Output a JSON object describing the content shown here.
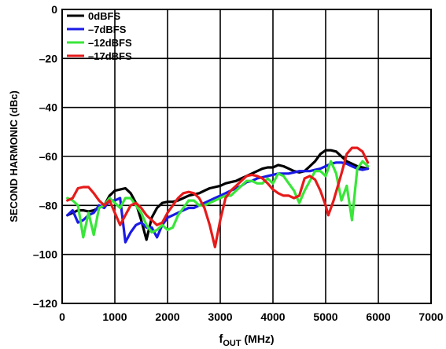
{
  "chart_data": {
    "type": "line",
    "xlabel_main": "f",
    "xlabel_sub": "OUT",
    "xlabel_unit": " (MHz)",
    "ylabel": "SECOND HARMONIC (dBc)",
    "xlim": [
      0,
      7000
    ],
    "ylim": [
      -120,
      0
    ],
    "xticks": [
      0,
      1000,
      2000,
      3000,
      4000,
      5000,
      6000,
      7000
    ],
    "yticks": [
      0,
      -20,
      -40,
      -60,
      -80,
      -100,
      -120
    ],
    "xtick_labels": [
      "0",
      "1000",
      "2000",
      "3000",
      "4000",
      "5000",
      "6000",
      "7000"
    ],
    "ytick_labels": [
      "0",
      "–20",
      "–40",
      "–60",
      "–80",
      "–100",
      "–120"
    ],
    "grid": true,
    "legend_position": "top-left",
    "series": [
      {
        "name": "0dBFS",
        "color": "#000000",
        "points": [
          [
            100,
            -84
          ],
          [
            200,
            -83
          ],
          [
            300,
            -82
          ],
          [
            400,
            -82
          ],
          [
            500,
            -82.5
          ],
          [
            600,
            -82
          ],
          [
            700,
            -81
          ],
          [
            800,
            -80
          ],
          [
            900,
            -76
          ],
          [
            1000,
            -74
          ],
          [
            1100,
            -73.5
          ],
          [
            1200,
            -73
          ],
          [
            1300,
            -75
          ],
          [
            1400,
            -79
          ],
          [
            1500,
            -86
          ],
          [
            1600,
            -94
          ],
          [
            1700,
            -85
          ],
          [
            1800,
            -81
          ],
          [
            1900,
            -79
          ],
          [
            2000,
            -78.5
          ],
          [
            2100,
            -78.5
          ],
          [
            2200,
            -78
          ],
          [
            2300,
            -77
          ],
          [
            2400,
            -76
          ],
          [
            2500,
            -75.5
          ],
          [
            2600,
            -75
          ],
          [
            2700,
            -74
          ],
          [
            2800,
            -73
          ],
          [
            2900,
            -72.5
          ],
          [
            3000,
            -72
          ],
          [
            3100,
            -71
          ],
          [
            3200,
            -70.5
          ],
          [
            3300,
            -70
          ],
          [
            3400,
            -69
          ],
          [
            3500,
            -68
          ],
          [
            3600,
            -67
          ],
          [
            3700,
            -66
          ],
          [
            3800,
            -65
          ],
          [
            3900,
            -64.5
          ],
          [
            4000,
            -64.5
          ],
          [
            4100,
            -63.5
          ],
          [
            4200,
            -64
          ],
          [
            4300,
            -65
          ],
          [
            4400,
            -66
          ],
          [
            4500,
            -66.5
          ],
          [
            4600,
            -66
          ],
          [
            4700,
            -64
          ],
          [
            4800,
            -62
          ],
          [
            4900,
            -59
          ],
          [
            5000,
            -57.5
          ],
          [
            5100,
            -57.5
          ],
          [
            5200,
            -58
          ],
          [
            5300,
            -60
          ],
          [
            5400,
            -62
          ],
          [
            5500,
            -63
          ],
          [
            5600,
            -64
          ],
          [
            5700,
            -64.5
          ],
          [
            5800,
            -65
          ]
        ]
      },
      {
        "name": "–7dBFS",
        "color": "#1a1ae6",
        "points": [
          [
            100,
            -84
          ],
          [
            200,
            -82
          ],
          [
            300,
            -87
          ],
          [
            400,
            -86
          ],
          [
            500,
            -84
          ],
          [
            600,
            -83
          ],
          [
            700,
            -80
          ],
          [
            800,
            -81
          ],
          [
            900,
            -78
          ],
          [
            1000,
            -78
          ],
          [
            1100,
            -77
          ],
          [
            1200,
            -95
          ],
          [
            1300,
            -91
          ],
          [
            1400,
            -88
          ],
          [
            1500,
            -87
          ],
          [
            1600,
            -89
          ],
          [
            1700,
            -89
          ],
          [
            1800,
            -93
          ],
          [
            1900,
            -88
          ],
          [
            2000,
            -85
          ],
          [
            2100,
            -84
          ],
          [
            2200,
            -83
          ],
          [
            2300,
            -82
          ],
          [
            2400,
            -81
          ],
          [
            2500,
            -81
          ],
          [
            2600,
            -80
          ],
          [
            2700,
            -79
          ],
          [
            2800,
            -78
          ],
          [
            2900,
            -77
          ],
          [
            3000,
            -76
          ],
          [
            3100,
            -75
          ],
          [
            3200,
            -74
          ],
          [
            3300,
            -73
          ],
          [
            3400,
            -72
          ],
          [
            3500,
            -70.5
          ],
          [
            3600,
            -70
          ],
          [
            3700,
            -69
          ],
          [
            3800,
            -68.5
          ],
          [
            3900,
            -68
          ],
          [
            4000,
            -67.5
          ],
          [
            4100,
            -67
          ],
          [
            4200,
            -67
          ],
          [
            4300,
            -67
          ],
          [
            4400,
            -66.5
          ],
          [
            4500,
            -66
          ],
          [
            4600,
            -66
          ],
          [
            4700,
            -66
          ],
          [
            4800,
            -65.5
          ],
          [
            4900,
            -65
          ],
          [
            5000,
            -64
          ],
          [
            5100,
            -63
          ],
          [
            5200,
            -62.5
          ],
          [
            5300,
            -62.5
          ],
          [
            5400,
            -63
          ],
          [
            5500,
            -64
          ],
          [
            5600,
            -65
          ],
          [
            5700,
            -65.5
          ],
          [
            5800,
            -65
          ]
        ]
      },
      {
        "name": "–12dBFS",
        "color": "#39e639",
        "points": [
          [
            100,
            -77
          ],
          [
            200,
            -78
          ],
          [
            300,
            -80
          ],
          [
            400,
            -93
          ],
          [
            500,
            -83
          ],
          [
            600,
            -92
          ],
          [
            700,
            -81
          ],
          [
            800,
            -80
          ],
          [
            900,
            -77
          ],
          [
            1000,
            -79
          ],
          [
            1100,
            -81
          ],
          [
            1200,
            -77
          ],
          [
            1300,
            -77
          ],
          [
            1400,
            -80
          ],
          [
            1500,
            -83
          ],
          [
            1600,
            -88
          ],
          [
            1700,
            -91
          ],
          [
            1800,
            -90
          ],
          [
            1900,
            -88
          ],
          [
            2000,
            -90
          ],
          [
            2100,
            -89
          ],
          [
            2200,
            -84
          ],
          [
            2300,
            -81
          ],
          [
            2400,
            -78
          ],
          [
            2500,
            -78
          ],
          [
            2600,
            -80
          ],
          [
            2700,
            -80
          ],
          [
            2800,
            -79
          ],
          [
            2900,
            -78
          ],
          [
            3000,
            -77
          ],
          [
            3100,
            -76
          ],
          [
            3200,
            -76
          ],
          [
            3300,
            -74
          ],
          [
            3400,
            -72
          ],
          [
            3500,
            -70
          ],
          [
            3600,
            -70
          ],
          [
            3700,
            -71
          ],
          [
            3800,
            -71
          ],
          [
            3900,
            -69
          ],
          [
            4000,
            -71
          ],
          [
            4100,
            -67
          ],
          [
            4200,
            -68
          ],
          [
            4300,
            -71
          ],
          [
            4400,
            -74
          ],
          [
            4500,
            -79
          ],
          [
            4600,
            -74
          ],
          [
            4700,
            -70
          ],
          [
            4800,
            -66
          ],
          [
            4900,
            -66
          ],
          [
            5000,
            -68
          ],
          [
            5100,
            -62
          ],
          [
            5200,
            -67
          ],
          [
            5300,
            -78
          ],
          [
            5400,
            -72
          ],
          [
            5500,
            -86
          ],
          [
            5600,
            -65
          ],
          [
            5700,
            -62
          ],
          [
            5800,
            -64
          ]
        ]
      },
      {
        "name": "–17dBFS",
        "color": "#e61a1a",
        "points": [
          [
            100,
            -78
          ],
          [
            200,
            -77
          ],
          [
            300,
            -73
          ],
          [
            400,
            -72.5
          ],
          [
            500,
            -72.5
          ],
          [
            600,
            -75
          ],
          [
            700,
            -78
          ],
          [
            800,
            -80
          ],
          [
            900,
            -78
          ],
          [
            1000,
            -83
          ],
          [
            1100,
            -88
          ],
          [
            1200,
            -84
          ],
          [
            1300,
            -80
          ],
          [
            1400,
            -79
          ],
          [
            1500,
            -81
          ],
          [
            1600,
            -84
          ],
          [
            1700,
            -86
          ],
          [
            1800,
            -88
          ],
          [
            1900,
            -87
          ],
          [
            2000,
            -83
          ],
          [
            2100,
            -80
          ],
          [
            2200,
            -77
          ],
          [
            2300,
            -75
          ],
          [
            2400,
            -74.5
          ],
          [
            2500,
            -75
          ],
          [
            2600,
            -77
          ],
          [
            2700,
            -81
          ],
          [
            2800,
            -88
          ],
          [
            2900,
            -97
          ],
          [
            3000,
            -86
          ],
          [
            3100,
            -77
          ],
          [
            3200,
            -74
          ],
          [
            3300,
            -72
          ],
          [
            3400,
            -70
          ],
          [
            3500,
            -68
          ],
          [
            3600,
            -67.5
          ],
          [
            3700,
            -68
          ],
          [
            3800,
            -69
          ],
          [
            3900,
            -71
          ],
          [
            4000,
            -73.5
          ],
          [
            4100,
            -75
          ],
          [
            4200,
            -76
          ],
          [
            4300,
            -76
          ],
          [
            4400,
            -77
          ],
          [
            4500,
            -76
          ],
          [
            4600,
            -69
          ],
          [
            4700,
            -68
          ],
          [
            4800,
            -69.5
          ],
          [
            4900,
            -74
          ],
          [
            5000,
            -80
          ],
          [
            5050,
            -84
          ],
          [
            5150,
            -78
          ],
          [
            5300,
            -67
          ],
          [
            5400,
            -59
          ],
          [
            5500,
            -56.5
          ],
          [
            5600,
            -56.5
          ],
          [
            5700,
            -58
          ],
          [
            5800,
            -62.5
          ]
        ]
      }
    ]
  }
}
